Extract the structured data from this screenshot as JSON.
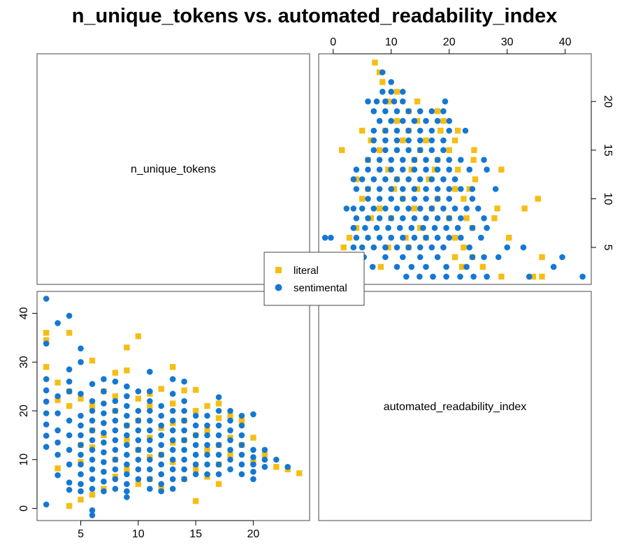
{
  "chart_data": {
    "type": "scatter",
    "title": "n_unique_tokens vs. automated_readability_index",
    "variables": [
      "n_unique_tokens",
      "automated_readability_index"
    ],
    "legend": {
      "placement": "center",
      "entries": [
        {
          "name": "literal",
          "marker": "square",
          "color": "#F5BE15"
        },
        {
          "name": "sentimental",
          "marker": "circle",
          "color": "#1478D2"
        }
      ]
    },
    "axes": {
      "n_unique_tokens": {
        "ticks": [
          5,
          10,
          15,
          20
        ],
        "range": [
          1.2,
          24.9
        ]
      },
      "automated_readability_index": {
        "ticks": [
          0,
          10,
          20,
          30,
          40
        ],
        "range": [
          -2.5,
          44.5
        ]
      }
    },
    "series": [
      {
        "name": "literal",
        "color": "#F5BE15",
        "points": [
          [
            2,
            36.0
          ],
          [
            2,
            29.0
          ],
          [
            2,
            34.5
          ],
          [
            3,
            25.8
          ],
          [
            3,
            22.2
          ],
          [
            3,
            8.2
          ],
          [
            4,
            36.0
          ],
          [
            4,
            21.0
          ],
          [
            4,
            0.5
          ],
          [
            4,
            24.0
          ],
          [
            5,
            22.5
          ],
          [
            5,
            1.8
          ],
          [
            5,
            9.5
          ],
          [
            5,
            13.0
          ],
          [
            6,
            30.3
          ],
          [
            6,
            2.8
          ],
          [
            6,
            21.0
          ],
          [
            6,
            16.0
          ],
          [
            6,
            12.5
          ],
          [
            7,
            24.0
          ],
          [
            7,
            4.0
          ],
          [
            7,
            15.0
          ],
          [
            8,
            27.8
          ],
          [
            8,
            23.0
          ],
          [
            8,
            20.0
          ],
          [
            8,
            10.0
          ],
          [
            8,
            6.5
          ],
          [
            9,
            33.0
          ],
          [
            9,
            28.3
          ],
          [
            9,
            17.0
          ],
          [
            9,
            14.0
          ],
          [
            9,
            8.0
          ],
          [
            10,
            35.3
          ],
          [
            10,
            22.5
          ],
          [
            10,
            18.0
          ],
          [
            10,
            12.0
          ],
          [
            10,
            5.0
          ],
          [
            11,
            23.5
          ],
          [
            11,
            21.0
          ],
          [
            11,
            14.5
          ],
          [
            11,
            10.5
          ],
          [
            11,
            6.0
          ],
          [
            12,
            24.5
          ],
          [
            12,
            16.5
          ],
          [
            12,
            11.0
          ],
          [
            12,
            4.0
          ],
          [
            13,
            29.0
          ],
          [
            13,
            21.5
          ],
          [
            13,
            17.5
          ],
          [
            13,
            13.5
          ],
          [
            13,
            9.5
          ],
          [
            14,
            24.2
          ],
          [
            14,
            18.0
          ],
          [
            14,
            14.0
          ],
          [
            14,
            6.0
          ],
          [
            15,
            24.3
          ],
          [
            15,
            20.0
          ],
          [
            15,
            15.0
          ],
          [
            15,
            1.5
          ],
          [
            15,
            8.0
          ],
          [
            16,
            21.0
          ],
          [
            16,
            16.0
          ],
          [
            16,
            12.0
          ],
          [
            16,
            6.5
          ],
          [
            17,
            21.5
          ],
          [
            17,
            18.5
          ],
          [
            17,
            13.0
          ],
          [
            17,
            9.0
          ],
          [
            17,
            5.0
          ],
          [
            18,
            19.0
          ],
          [
            18,
            14.5
          ],
          [
            18,
            11.0
          ],
          [
            19,
            18.0
          ],
          [
            19,
            13.0
          ],
          [
            20,
            14.5
          ],
          [
            20,
            9.5
          ],
          [
            21,
            11.0
          ],
          [
            22,
            8.5
          ],
          [
            23,
            8.0
          ],
          [
            24,
            7.2
          ]
        ]
      },
      {
        "name": "sentimental",
        "color": "#1478D2",
        "points": [
          [
            2,
            43.0
          ],
          [
            2,
            33.8
          ],
          [
            2,
            26.5
          ],
          [
            2,
            24.2
          ],
          [
            2,
            21.9
          ],
          [
            2,
            19.5
          ],
          [
            2,
            17.2
          ],
          [
            2,
            14.9
          ],
          [
            2,
            12.6
          ],
          [
            2,
            0.8
          ],
          [
            3,
            38.0
          ],
          [
            3,
            23.0
          ],
          [
            3,
            19.5
          ],
          [
            3,
            16.0
          ],
          [
            3,
            13.5
          ],
          [
            3,
            11.0
          ],
          [
            3,
            6.8
          ],
          [
            4,
            39.5
          ],
          [
            4,
            28.5
          ],
          [
            4,
            26.0
          ],
          [
            4,
            24.0
          ],
          [
            4,
            18.0
          ],
          [
            4,
            15.0
          ],
          [
            4,
            12.0
          ],
          [
            4,
            9.0
          ],
          [
            4,
            5.3
          ],
          [
            4,
            3.8
          ],
          [
            5,
            32.8
          ],
          [
            5,
            30.0
          ],
          [
            5,
            23.5
          ],
          [
            5,
            19.0
          ],
          [
            5,
            17.0
          ],
          [
            5,
            15.0
          ],
          [
            5,
            13.0
          ],
          [
            5,
            11.0
          ],
          [
            5,
            9.0
          ],
          [
            5,
            7.0
          ],
          [
            5,
            5.0
          ],
          [
            5,
            3.5
          ],
          [
            6,
            25.5
          ],
          [
            6,
            22.0
          ],
          [
            6,
            20.0
          ],
          [
            6,
            18.0
          ],
          [
            6,
            16.0
          ],
          [
            6,
            14.0
          ],
          [
            6,
            12.0
          ],
          [
            6,
            10.0
          ],
          [
            6,
            8.0
          ],
          [
            6,
            6.0
          ],
          [
            6,
            4.0
          ],
          [
            6,
            -0.4
          ],
          [
            6,
            -1.4
          ],
          [
            7,
            26.5
          ],
          [
            7,
            24.0
          ],
          [
            7,
            21.5
          ],
          [
            7,
            19.5
          ],
          [
            7,
            17.5
          ],
          [
            7,
            15.5
          ],
          [
            7,
            13.5
          ],
          [
            7,
            11.5
          ],
          [
            7,
            9.5
          ],
          [
            7,
            7.5
          ],
          [
            7,
            5.5
          ],
          [
            7,
            3.5
          ],
          [
            8,
            26.0
          ],
          [
            8,
            22.0
          ],
          [
            8,
            20.0
          ],
          [
            8,
            18.0
          ],
          [
            8,
            16.0
          ],
          [
            8,
            14.0
          ],
          [
            8,
            12.0
          ],
          [
            8,
            10.0
          ],
          [
            8,
            8.0
          ],
          [
            8,
            6.0
          ],
          [
            8,
            4.0
          ],
          [
            9,
            25.0
          ],
          [
            9,
            23.0
          ],
          [
            9,
            21.0
          ],
          [
            9,
            19.0
          ],
          [
            9,
            17.0
          ],
          [
            9,
            15.0
          ],
          [
            9,
            13.0
          ],
          [
            9,
            11.0
          ],
          [
            9,
            9.0
          ],
          [
            9,
            7.0
          ],
          [
            9,
            5.0
          ],
          [
            9,
            3.5
          ],
          [
            9,
            2.3
          ],
          [
            10,
            24.0
          ],
          [
            10,
            20.0
          ],
          [
            10,
            18.0
          ],
          [
            10,
            16.0
          ],
          [
            10,
            14.0
          ],
          [
            10,
            12.0
          ],
          [
            10,
            10.0
          ],
          [
            10,
            8.0
          ],
          [
            10,
            6.0
          ],
          [
            11,
            28.0
          ],
          [
            11,
            24.0
          ],
          [
            11,
            22.0
          ],
          [
            11,
            20.0
          ],
          [
            11,
            18.0
          ],
          [
            11,
            16.0
          ],
          [
            11,
            14.0
          ],
          [
            11,
            12.0
          ],
          [
            11,
            10.0
          ],
          [
            11,
            8.0
          ],
          [
            11,
            6.0
          ],
          [
            11,
            4.0
          ],
          [
            12,
            21.0
          ],
          [
            12,
            19.0
          ],
          [
            12,
            17.0
          ],
          [
            12,
            15.0
          ],
          [
            12,
            13.0
          ],
          [
            12,
            11.0
          ],
          [
            12,
            9.0
          ],
          [
            12,
            7.0
          ],
          [
            12,
            5.0
          ],
          [
            12,
            3.5
          ],
          [
            13,
            26.5
          ],
          [
            13,
            23.5
          ],
          [
            13,
            20.0
          ],
          [
            13,
            18.0
          ],
          [
            13,
            16.0
          ],
          [
            13,
            14.0
          ],
          [
            13,
            12.0
          ],
          [
            13,
            10.0
          ],
          [
            13,
            8.0
          ],
          [
            13,
            6.0
          ],
          [
            13,
            4.0
          ],
          [
            14,
            26.0
          ],
          [
            14,
            22.0
          ],
          [
            14,
            20.0
          ],
          [
            14,
            18.0
          ],
          [
            14,
            16.0
          ],
          [
            14,
            14.0
          ],
          [
            14,
            12.0
          ],
          [
            14,
            10.0
          ],
          [
            14,
            8.0
          ],
          [
            14,
            6.0
          ],
          [
            15,
            19.0
          ],
          [
            15,
            17.0
          ],
          [
            15,
            15.0
          ],
          [
            15,
            13.0
          ],
          [
            15,
            11.0
          ],
          [
            15,
            9.0
          ],
          [
            15,
            7.0
          ],
          [
            16,
            19.0
          ],
          [
            16,
            17.0
          ],
          [
            16,
            15.0
          ],
          [
            16,
            13.0
          ],
          [
            16,
            11.0
          ],
          [
            16,
            9.0
          ],
          [
            16,
            7.0
          ],
          [
            17,
            22.8
          ],
          [
            17,
            20.0
          ],
          [
            17,
            17.0
          ],
          [
            17,
            15.0
          ],
          [
            17,
            13.0
          ],
          [
            17,
            11.0
          ],
          [
            17,
            9.0
          ],
          [
            17,
            7.0
          ],
          [
            18,
            20.0
          ],
          [
            18,
            18.0
          ],
          [
            18,
            16.0
          ],
          [
            18,
            14.0
          ],
          [
            18,
            12.0
          ],
          [
            18,
            10.0
          ],
          [
            18,
            8.0
          ],
          [
            19,
            19.0
          ],
          [
            19,
            17.0
          ],
          [
            19,
            15.0
          ],
          [
            19,
            13.0
          ],
          [
            19,
            11.0
          ],
          [
            19,
            9.0
          ],
          [
            19,
            7.0
          ],
          [
            20,
            19.3
          ],
          [
            20,
            12.0
          ],
          [
            20,
            10.5
          ],
          [
            20,
            9.0
          ],
          [
            20,
            7.5
          ],
          [
            20,
            6.0
          ],
          [
            21,
            12.0
          ],
          [
            21,
            10.0
          ],
          [
            21,
            8.5
          ],
          [
            22,
            10.0
          ],
          [
            23,
            8.5
          ]
        ]
      }
    ]
  }
}
